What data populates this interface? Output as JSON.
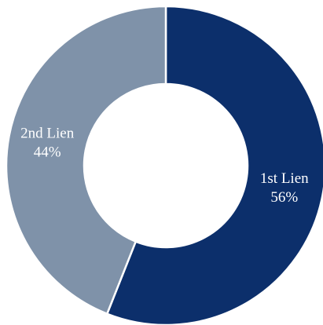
{
  "chart_data": {
    "type": "pie",
    "donut": true,
    "categories": [
      "1st Lien",
      "2nd Lien"
    ],
    "values": [
      56,
      44
    ],
    "value_labels": [
      "56%",
      "44%"
    ],
    "colors": [
      "#0c2f6b",
      "#7f92a9"
    ]
  }
}
